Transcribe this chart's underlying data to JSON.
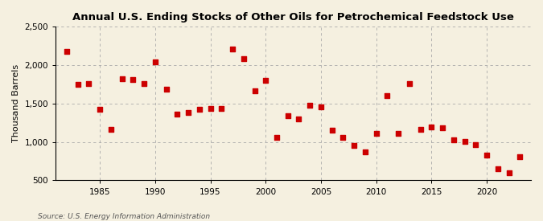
{
  "title": "Annual U.S. Ending Stocks of Other Oils for Petrochemical Feedstock Use",
  "ylabel": "Thousand Barrels",
  "source": "Source: U.S. Energy Information Administration",
  "background_color": "#F5F0E0",
  "marker_color": "#CC0000",
  "grid_color": "#AAAAAA",
  "xlim": [
    1981,
    2024
  ],
  "ylim": [
    500,
    2500
  ],
  "yticks": [
    500,
    1000,
    1500,
    2000,
    2500
  ],
  "ytick_labels": [
    "500",
    "1,000",
    "1,500",
    "2,000",
    "2,500"
  ],
  "xticks": [
    1985,
    1990,
    1995,
    2000,
    2005,
    2010,
    2015,
    2020
  ],
  "years": [
    1982,
    1983,
    1984,
    1985,
    1986,
    1987,
    1988,
    1989,
    1990,
    1991,
    1992,
    1993,
    1994,
    1995,
    1996,
    1997,
    1998,
    1999,
    2000,
    2001,
    2002,
    2003,
    2004,
    2005,
    2006,
    2007,
    2008,
    2009,
    2010,
    2011,
    2012,
    2013,
    2014,
    2015,
    2016,
    2017,
    2018,
    2019,
    2020,
    2021,
    2022,
    2023
  ],
  "values": [
    2180,
    1750,
    1760,
    1430,
    1160,
    1820,
    1810,
    1760,
    2040,
    1690,
    1360,
    1380,
    1430,
    1440,
    1440,
    2210,
    2080,
    1670,
    1800,
    1060,
    1340,
    1300,
    1480,
    1460,
    1150,
    1060,
    950,
    875,
    1110,
    1600,
    1110,
    1760,
    1160,
    1200,
    1190,
    1030,
    1010,
    970,
    830,
    650,
    600,
    810
  ]
}
